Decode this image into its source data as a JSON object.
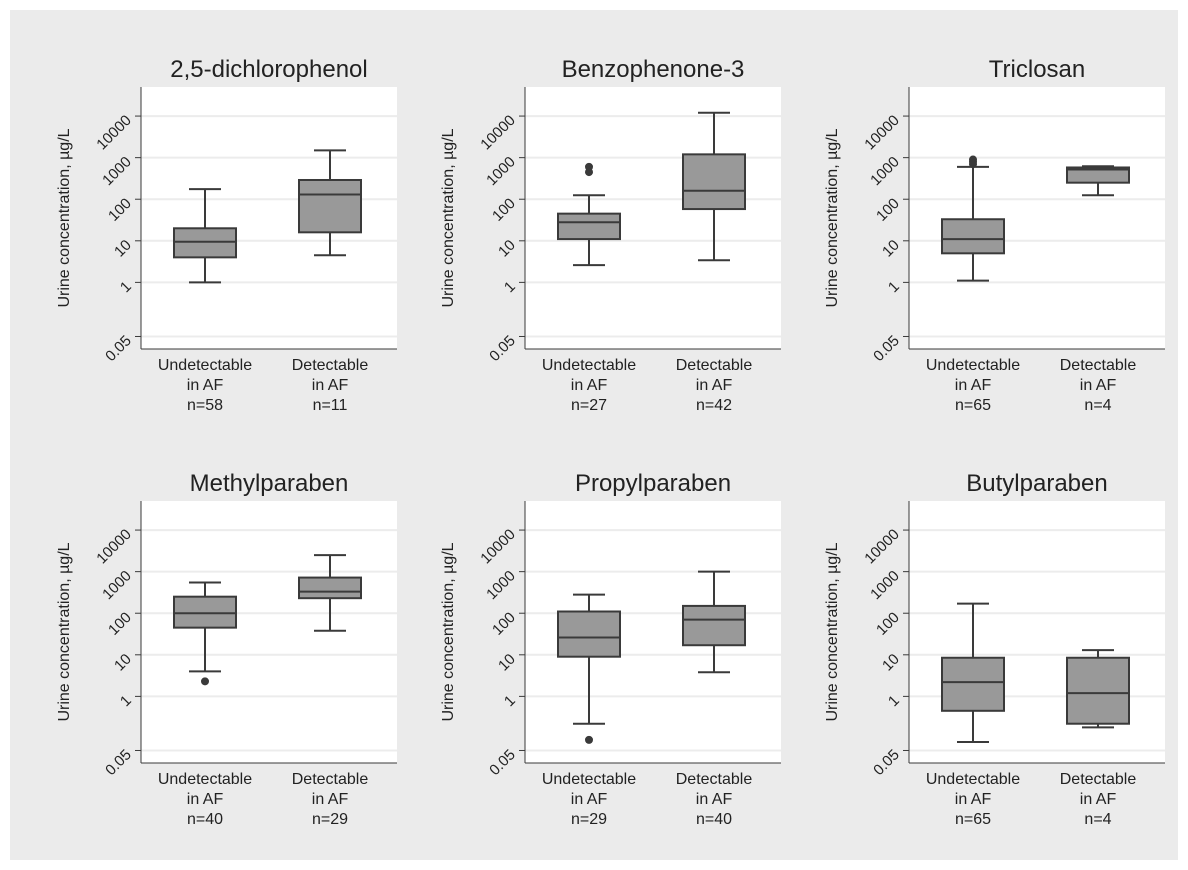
{
  "colors": {
    "outer_background": "#ebebeb",
    "plot_background": "#ffffff",
    "box_fill": "#999999",
    "line": "#3a3a3a",
    "grid": "#ececec",
    "text": "#222222"
  },
  "ylabel": "Urine concentration, µg/L",
  "yticks": [
    "0.05",
    "1",
    "10",
    "100",
    "1000",
    "10000"
  ],
  "chart_data": [
    {
      "type": "box",
      "title": "2,5-dichlorophenol",
      "ylabel": "Urine concentration, µg/L",
      "yscale": "log",
      "ylim": [
        0.025,
        50000
      ],
      "grid": true,
      "groups": [
        {
          "label": [
            "Undetectable",
            "in AF",
            "n=58"
          ],
          "whisker_low": 1,
          "q1": 4,
          "median": 9.5,
          "q3": 20,
          "whisker_high": 175,
          "outliers": []
        },
        {
          "label": [
            "Detectable",
            "in AF",
            "n=11"
          ],
          "whisker_low": 4.5,
          "q1": 16,
          "median": 130,
          "q3": 290,
          "whisker_high": 1500,
          "outliers": []
        }
      ]
    },
    {
      "type": "box",
      "title": "Benzophenone-3",
      "ylabel": "Urine concentration, µg/L",
      "yscale": "log",
      "ylim": [
        0.025,
        50000
      ],
      "grid": true,
      "groups": [
        {
          "label": [
            "Undetectable",
            "in AF",
            "n=27"
          ],
          "whisker_low": 2.6,
          "q1": 11,
          "median": 28,
          "q3": 45,
          "whisker_high": 125,
          "outliers": [
            450,
            600
          ]
        },
        {
          "label": [
            "Detectable",
            "in AF",
            "n=42"
          ],
          "whisker_low": 3.4,
          "q1": 58,
          "median": 160,
          "q3": 1200,
          "whisker_high": 12000,
          "outliers": []
        }
      ]
    },
    {
      "type": "box",
      "title": "Triclosan",
      "ylabel": "Urine concentration, µg/L",
      "yscale": "log",
      "ylim": [
        0.025,
        50000
      ],
      "grid": true,
      "groups": [
        {
          "label": [
            "Undetectable",
            "in AF",
            "n=65"
          ],
          "whisker_low": 1.1,
          "q1": 5,
          "median": 11,
          "q3": 33,
          "whisker_high": 600,
          "outliers": [
            700,
            800,
            900
          ]
        },
        {
          "label": [
            "Detectable",
            "in AF",
            "n=4"
          ],
          "whisker_low": 125,
          "q1": 250,
          "median": 520,
          "q3": 580,
          "whisker_high": 620,
          "outliers": []
        }
      ]
    },
    {
      "type": "box",
      "title": "Methylparaben",
      "ylabel": "Urine concentration, µg/L",
      "yscale": "log",
      "ylim": [
        0.025,
        50000
      ],
      "grid": true,
      "groups": [
        {
          "label": [
            "Undetectable",
            "in AF",
            "n=40"
          ],
          "whisker_low": 4,
          "q1": 45,
          "median": 100,
          "q3": 250,
          "whisker_high": 550,
          "outliers": [
            2.3
          ]
        },
        {
          "label": [
            "Detectable",
            "in AF",
            "n=29"
          ],
          "whisker_low": 38,
          "q1": 230,
          "median": 330,
          "q3": 720,
          "whisker_high": 2500,
          "outliers": []
        }
      ]
    },
    {
      "type": "box",
      "title": "Propylparaben",
      "ylabel": "Urine concentration, µg/L",
      "yscale": "log",
      "ylim": [
        0.025,
        50000
      ],
      "grid": true,
      "groups": [
        {
          "label": [
            "Undetectable",
            "in AF",
            "n=29"
          ],
          "whisker_low": 0.22,
          "q1": 9,
          "median": 26,
          "q3": 110,
          "whisker_high": 280,
          "outliers": [
            0.09
          ]
        },
        {
          "label": [
            "Detectable",
            "in AF",
            "n=40"
          ],
          "whisker_low": 3.8,
          "q1": 17,
          "median": 70,
          "q3": 150,
          "whisker_high": 1000,
          "outliers": []
        }
      ]
    },
    {
      "type": "box",
      "title": "Butylparaben",
      "ylabel": "Urine concentration, µg/L",
      "yscale": "log",
      "ylim": [
        0.025,
        50000
      ],
      "grid": true,
      "groups": [
        {
          "label": [
            "Undetectable",
            "in AF",
            "n=65"
          ],
          "whisker_low": 0.08,
          "q1": 0.45,
          "median": 2.2,
          "q3": 8.5,
          "whisker_high": 170,
          "outliers": []
        },
        {
          "label": [
            "Detectable",
            "in AF",
            "n=4"
          ],
          "whisker_low": 0.18,
          "q1": 0.22,
          "median": 1.2,
          "q3": 8.5,
          "whisker_high": 13,
          "outliers": []
        }
      ]
    }
  ]
}
